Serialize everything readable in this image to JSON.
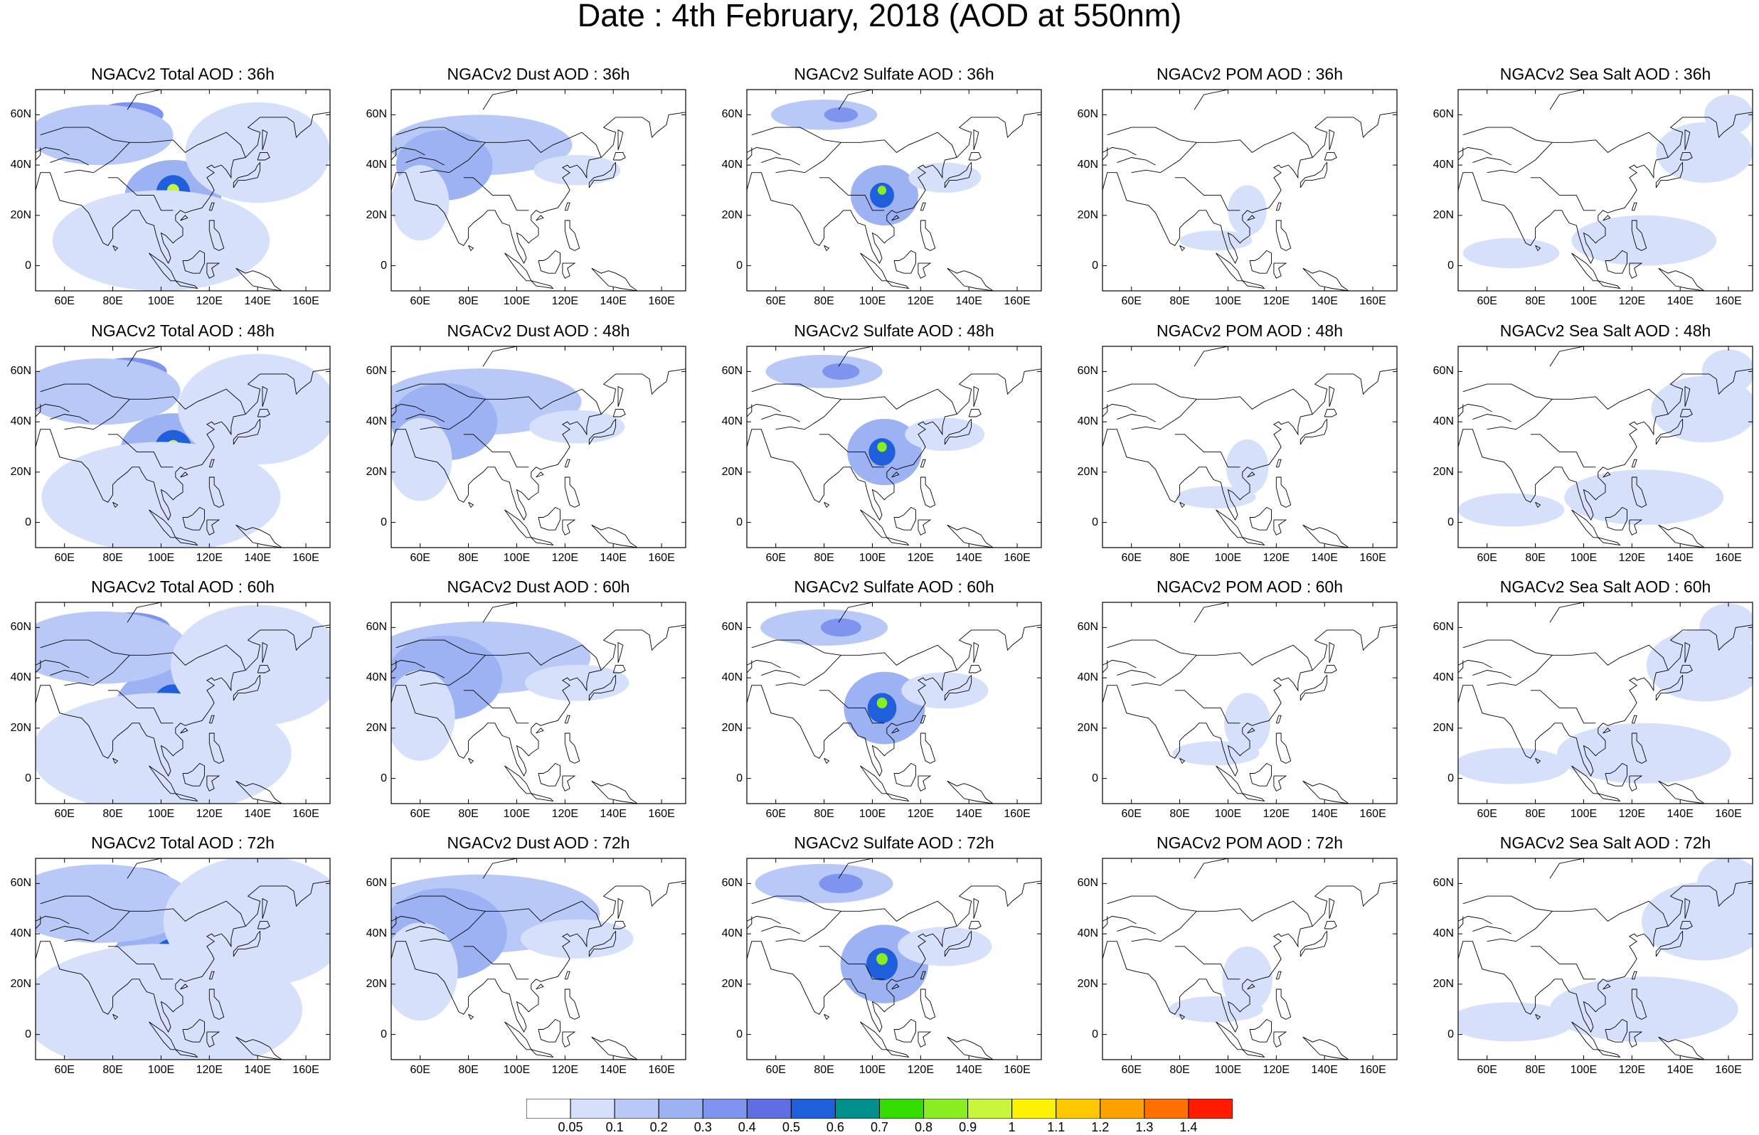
{
  "title": "Date : 4th February, 2018 (AOD at 550nm)",
  "map": {
    "lon_range": [
      48,
      170
    ],
    "lat_range": [
      -10,
      70
    ],
    "lon_ticks": [
      "60E",
      "80E",
      "100E",
      "120E",
      "140E",
      "160E"
    ],
    "lat_ticks": [
      "60N",
      "40N",
      "20N",
      "0"
    ],
    "variable": "AOD at 550nm"
  },
  "panels": [
    {
      "title": "NGACv2 Total AOD : 36h",
      "species": "total",
      "hour": 36
    },
    {
      "title": "NGACv2 Dust AOD : 36h",
      "species": "dust",
      "hour": 36
    },
    {
      "title": "NGACv2 Sulfate AOD : 36h",
      "species": "sulfate",
      "hour": 36
    },
    {
      "title": "NGACv2 POM AOD : 36h",
      "species": "pom",
      "hour": 36
    },
    {
      "title": "NGACv2 Sea Salt AOD : 36h",
      "species": "seasalt",
      "hour": 36
    },
    {
      "title": "NGACv2 Total AOD : 48h",
      "species": "total",
      "hour": 48
    },
    {
      "title": "NGACv2 Dust AOD : 48h",
      "species": "dust",
      "hour": 48
    },
    {
      "title": "NGACv2 Sulfate AOD : 48h",
      "species": "sulfate",
      "hour": 48
    },
    {
      "title": "NGACv2 POM AOD : 48h",
      "species": "pom",
      "hour": 48
    },
    {
      "title": "NGACv2 Sea Salt AOD : 48h",
      "species": "seasalt",
      "hour": 48
    },
    {
      "title": "NGACv2 Total AOD : 60h",
      "species": "total",
      "hour": 60
    },
    {
      "title": "NGACv2 Dust AOD : 60h",
      "species": "dust",
      "hour": 60
    },
    {
      "title": "NGACv2 Sulfate AOD : 60h",
      "species": "sulfate",
      "hour": 60
    },
    {
      "title": "NGACv2 POM AOD : 60h",
      "species": "pom",
      "hour": 60
    },
    {
      "title": "NGACv2 Sea Salt AOD : 60h",
      "species": "seasalt",
      "hour": 60
    },
    {
      "title": "NGACv2 Total AOD : 72h",
      "species": "total",
      "hour": 72
    },
    {
      "title": "NGACv2 Dust AOD : 72h",
      "species": "dust",
      "hour": 72
    },
    {
      "title": "NGACv2 Sulfate AOD : 72h",
      "species": "sulfate",
      "hour": 72
    },
    {
      "title": "NGACv2 POM AOD : 72h",
      "species": "pom",
      "hour": 72
    },
    {
      "title": "NGACv2 Sea Salt  AOD : 72h",
      "species": "seasalt",
      "hour": 72
    }
  ],
  "colorbar": {
    "labels": [
      "0.05",
      "0.1",
      "0.2",
      "0.3",
      "0.4",
      "0.5",
      "0.6",
      "0.7",
      "0.8",
      "0.9",
      "1",
      "1.1",
      "1.2",
      "1.3",
      "1.4"
    ],
    "colors": [
      "#ffffff",
      "#d6e0fb",
      "#b8c9f7",
      "#9cb2f3",
      "#7f94ee",
      "#5f6ee3",
      "#1f5fdc",
      "#008f8a",
      "#33dd00",
      "#88ee22",
      "#c6f53a",
      "#fff200",
      "#ffc800",
      "#ffa000",
      "#ff7000",
      "#ff1a00"
    ]
  },
  "plumes": {
    "total": [
      {
        "lon": 105,
        "lat": 28,
        "rx": 20,
        "ry": 14,
        "level": 3
      },
      {
        "lon": 105,
        "lat": 29,
        "rx": 7,
        "ry": 7,
        "level": 6
      },
      {
        "lon": 105,
        "lat": 30,
        "rx": 2.5,
        "ry": 2.5,
        "level": 10
      },
      {
        "lon": 87,
        "lat": 60,
        "rx": 14,
        "ry": 5,
        "level": 4
      },
      {
        "lon": 75,
        "lat": 52,
        "rx": 30,
        "ry": 12,
        "level": 2
      },
      {
        "lon": 100,
        "lat": 10,
        "rx": 45,
        "ry": 20,
        "level": 1
      },
      {
        "lon": 140,
        "lat": 45,
        "rx": 30,
        "ry": 20,
        "level": 1
      }
    ],
    "dust": [
      {
        "lon": 85,
        "lat": 48,
        "rx": 38,
        "ry": 12,
        "level": 2
      },
      {
        "lon": 70,
        "lat": 40,
        "rx": 20,
        "ry": 14,
        "level": 3
      },
      {
        "lon": 60,
        "lat": 25,
        "rx": 12,
        "ry": 15,
        "level": 1
      },
      {
        "lon": 125,
        "lat": 38,
        "rx": 18,
        "ry": 6,
        "level": 1
      }
    ],
    "sulfate": [
      {
        "lon": 105,
        "lat": 28,
        "rx": 14,
        "ry": 12,
        "level": 3
      },
      {
        "lon": 104,
        "lat": 28,
        "rx": 5,
        "ry": 5,
        "level": 6
      },
      {
        "lon": 104,
        "lat": 30,
        "rx": 1.8,
        "ry": 1.8,
        "level": 9
      },
      {
        "lon": 80,
        "lat": 60,
        "rx": 22,
        "ry": 6,
        "level": 2
      },
      {
        "lon": 87,
        "lat": 60,
        "rx": 7,
        "ry": 3,
        "level": 4
      },
      {
        "lon": 130,
        "lat": 35,
        "rx": 15,
        "ry": 6,
        "level": 1
      }
    ],
    "pom": [
      {
        "lon": 108,
        "lat": 22,
        "rx": 8,
        "ry": 10,
        "level": 1
      },
      {
        "lon": 95,
        "lat": 10,
        "rx": 15,
        "ry": 4,
        "level": 1
      }
    ],
    "seasalt": [
      {
        "lon": 125,
        "lat": 10,
        "rx": 30,
        "ry": 10,
        "level": 1
      },
      {
        "lon": 150,
        "lat": 45,
        "rx": 20,
        "ry": 12,
        "level": 1
      },
      {
        "lon": 70,
        "lat": 5,
        "rx": 20,
        "ry": 6,
        "level": 1
      },
      {
        "lon": 160,
        "lat": 60,
        "rx": 10,
        "ry": 8,
        "level": 1
      }
    ]
  }
}
